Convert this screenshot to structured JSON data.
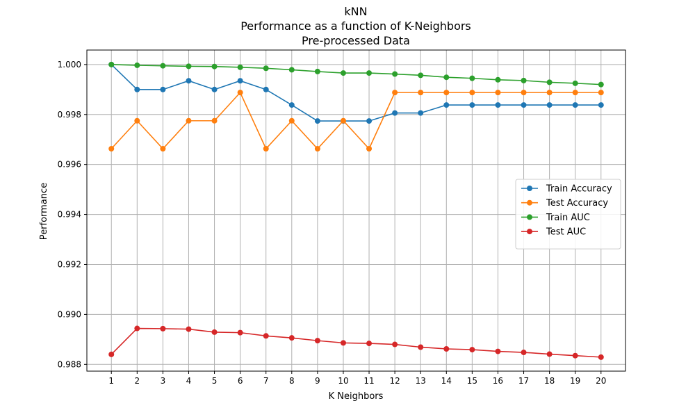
{
  "chart_data": {
    "type": "line",
    "title_lines": [
      "kNN",
      "Performance as a function of K-Neighbors",
      "Pre-processed Data"
    ],
    "xlabel": "K Neighbors",
    "ylabel": "Performance",
    "x": [
      1,
      2,
      3,
      4,
      5,
      6,
      7,
      8,
      9,
      10,
      11,
      12,
      13,
      14,
      15,
      16,
      17,
      18,
      19,
      20
    ],
    "xticks": [
      "1",
      "2",
      "3",
      "4",
      "5",
      "6",
      "7",
      "8",
      "9",
      "10",
      "11",
      "12",
      "13",
      "14",
      "15",
      "16",
      "17",
      "18",
      "19",
      "20"
    ],
    "yticks": [
      0.988,
      0.99,
      0.992,
      0.994,
      0.996,
      0.998,
      1.0
    ],
    "ytick_labels": [
      "0.988",
      "0.990",
      "0.992",
      "0.994",
      "0.996",
      "0.998",
      "1.000"
    ],
    "xlim": [
      0.05,
      20.95
    ],
    "ylim": [
      0.98773,
      1.00058
    ],
    "grid": true,
    "legend_position": "center-right",
    "series": [
      {
        "name": "Train Accuracy",
        "color": "#1f77b4",
        "values": [
          1.0,
          0.999,
          0.999,
          0.99935,
          0.999,
          0.99935,
          0.999,
          0.99838,
          0.99774,
          0.99774,
          0.99774,
          0.99806,
          0.99806,
          0.99838,
          0.99838,
          0.99838,
          0.99838,
          0.99838,
          0.99838,
          0.99838
        ]
      },
      {
        "name": "Test Accuracy",
        "color": "#ff7f0e",
        "values": [
          0.99663,
          0.99775,
          0.99663,
          0.99775,
          0.99775,
          0.99888,
          0.99663,
          0.99775,
          0.99663,
          0.99775,
          0.99663,
          0.99888,
          0.99888,
          0.99888,
          0.99888,
          0.99888,
          0.99888,
          0.99888,
          0.99888,
          0.99888
        ]
      },
      {
        "name": "Train AUC",
        "color": "#2ca02c",
        "values": [
          1.0,
          0.99997,
          0.99995,
          0.99993,
          0.99992,
          0.99989,
          0.99985,
          0.99979,
          0.99972,
          0.99966,
          0.99966,
          0.99962,
          0.99957,
          0.99949,
          0.99945,
          0.99939,
          0.99936,
          0.99929,
          0.99925,
          0.9992
        ]
      },
      {
        "name": "Test AUC",
        "color": "#d62728",
        "values": [
          0.9884,
          0.98944,
          0.98943,
          0.98941,
          0.98929,
          0.98927,
          0.98914,
          0.98906,
          0.98895,
          0.98886,
          0.98884,
          0.9888,
          0.98869,
          0.98862,
          0.98859,
          0.98852,
          0.98848,
          0.98841,
          0.98835,
          0.98829
        ]
      }
    ]
  }
}
